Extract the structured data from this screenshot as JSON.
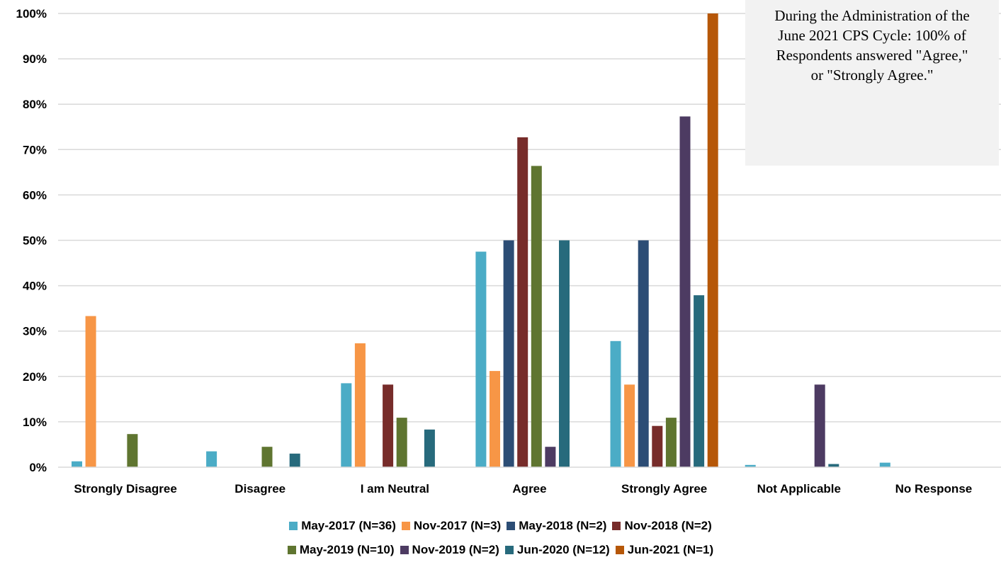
{
  "chart_data": {
    "type": "bar",
    "categories": [
      "Strongly Disagree",
      "Disagree",
      "I am Neutral",
      "Agree",
      "Strongly Agree",
      "Not Applicable",
      "No Response"
    ],
    "ylim": [
      0,
      100
    ],
    "yticks": [
      "0%",
      "10%",
      "20%",
      "30%",
      "40%",
      "50%",
      "60%",
      "70%",
      "80%",
      "90%",
      "100%"
    ],
    "grid": true,
    "legend_position": "bottom",
    "series": [
      {
        "name": "May-2017 (N=36)",
        "color": "#4bacc6",
        "values": [
          1.3,
          3.5,
          18.5,
          47.5,
          27.8,
          0.5,
          1.0
        ]
      },
      {
        "name": "Nov-2017 (N=3)",
        "color": "#f79646",
        "values": [
          33.3,
          0,
          27.3,
          21.2,
          18.2,
          0,
          0
        ]
      },
      {
        "name": "May-2018 (N=2)",
        "color": "#2c4d75",
        "values": [
          0,
          0,
          0,
          50,
          50,
          0,
          0
        ]
      },
      {
        "name": "Nov-2018 (N=2)",
        "color": "#772c2a",
        "values": [
          0,
          0,
          18.2,
          72.7,
          9.1,
          0,
          0
        ]
      },
      {
        "name": "May-2019 (N=10)",
        "color": "#5f7530",
        "values": [
          7.3,
          4.5,
          10.9,
          66.4,
          10.9,
          0,
          0
        ]
      },
      {
        "name": "Nov-2019 (N=2)",
        "color": "#4d3b62",
        "values": [
          0,
          0,
          0,
          4.5,
          77.3,
          18.2,
          0
        ]
      },
      {
        "name": "Jun-2020 (N=12)",
        "color": "#276a7c",
        "values": [
          0,
          3.0,
          8.3,
          50,
          37.9,
          0.7,
          0
        ]
      },
      {
        "name": "Jun-2021 (N=1)",
        "color": "#b65708",
        "values": [
          0,
          0,
          0,
          0,
          100,
          0,
          0
        ]
      }
    ],
    "annotation": "During the Administration of the June 2021 CPS Cycle: 100% of Respondents answered \"Agree,\" or \"Strongly Agree.\""
  },
  "legend": {
    "rows": [
      [
        {
          "label": "May-2017 (N=36)",
          "color": "#4bacc6"
        },
        {
          "label": "Nov-2017 (N=3)",
          "color": "#f79646"
        },
        {
          "label": "May-2018 (N=2)",
          "color": "#2c4d75"
        },
        {
          "label": "Nov-2018 (N=2)",
          "color": "#772c2a"
        }
      ],
      [
        {
          "label": "May-2019 (N=10)",
          "color": "#5f7530"
        },
        {
          "label": "Nov-2019 (N=2)",
          "color": "#4d3b62"
        },
        {
          "label": "Jun-2020 (N=12)",
          "color": "#276a7c"
        },
        {
          "label": "Jun-2021 (N=1)",
          "color": "#b65708"
        }
      ]
    ]
  }
}
